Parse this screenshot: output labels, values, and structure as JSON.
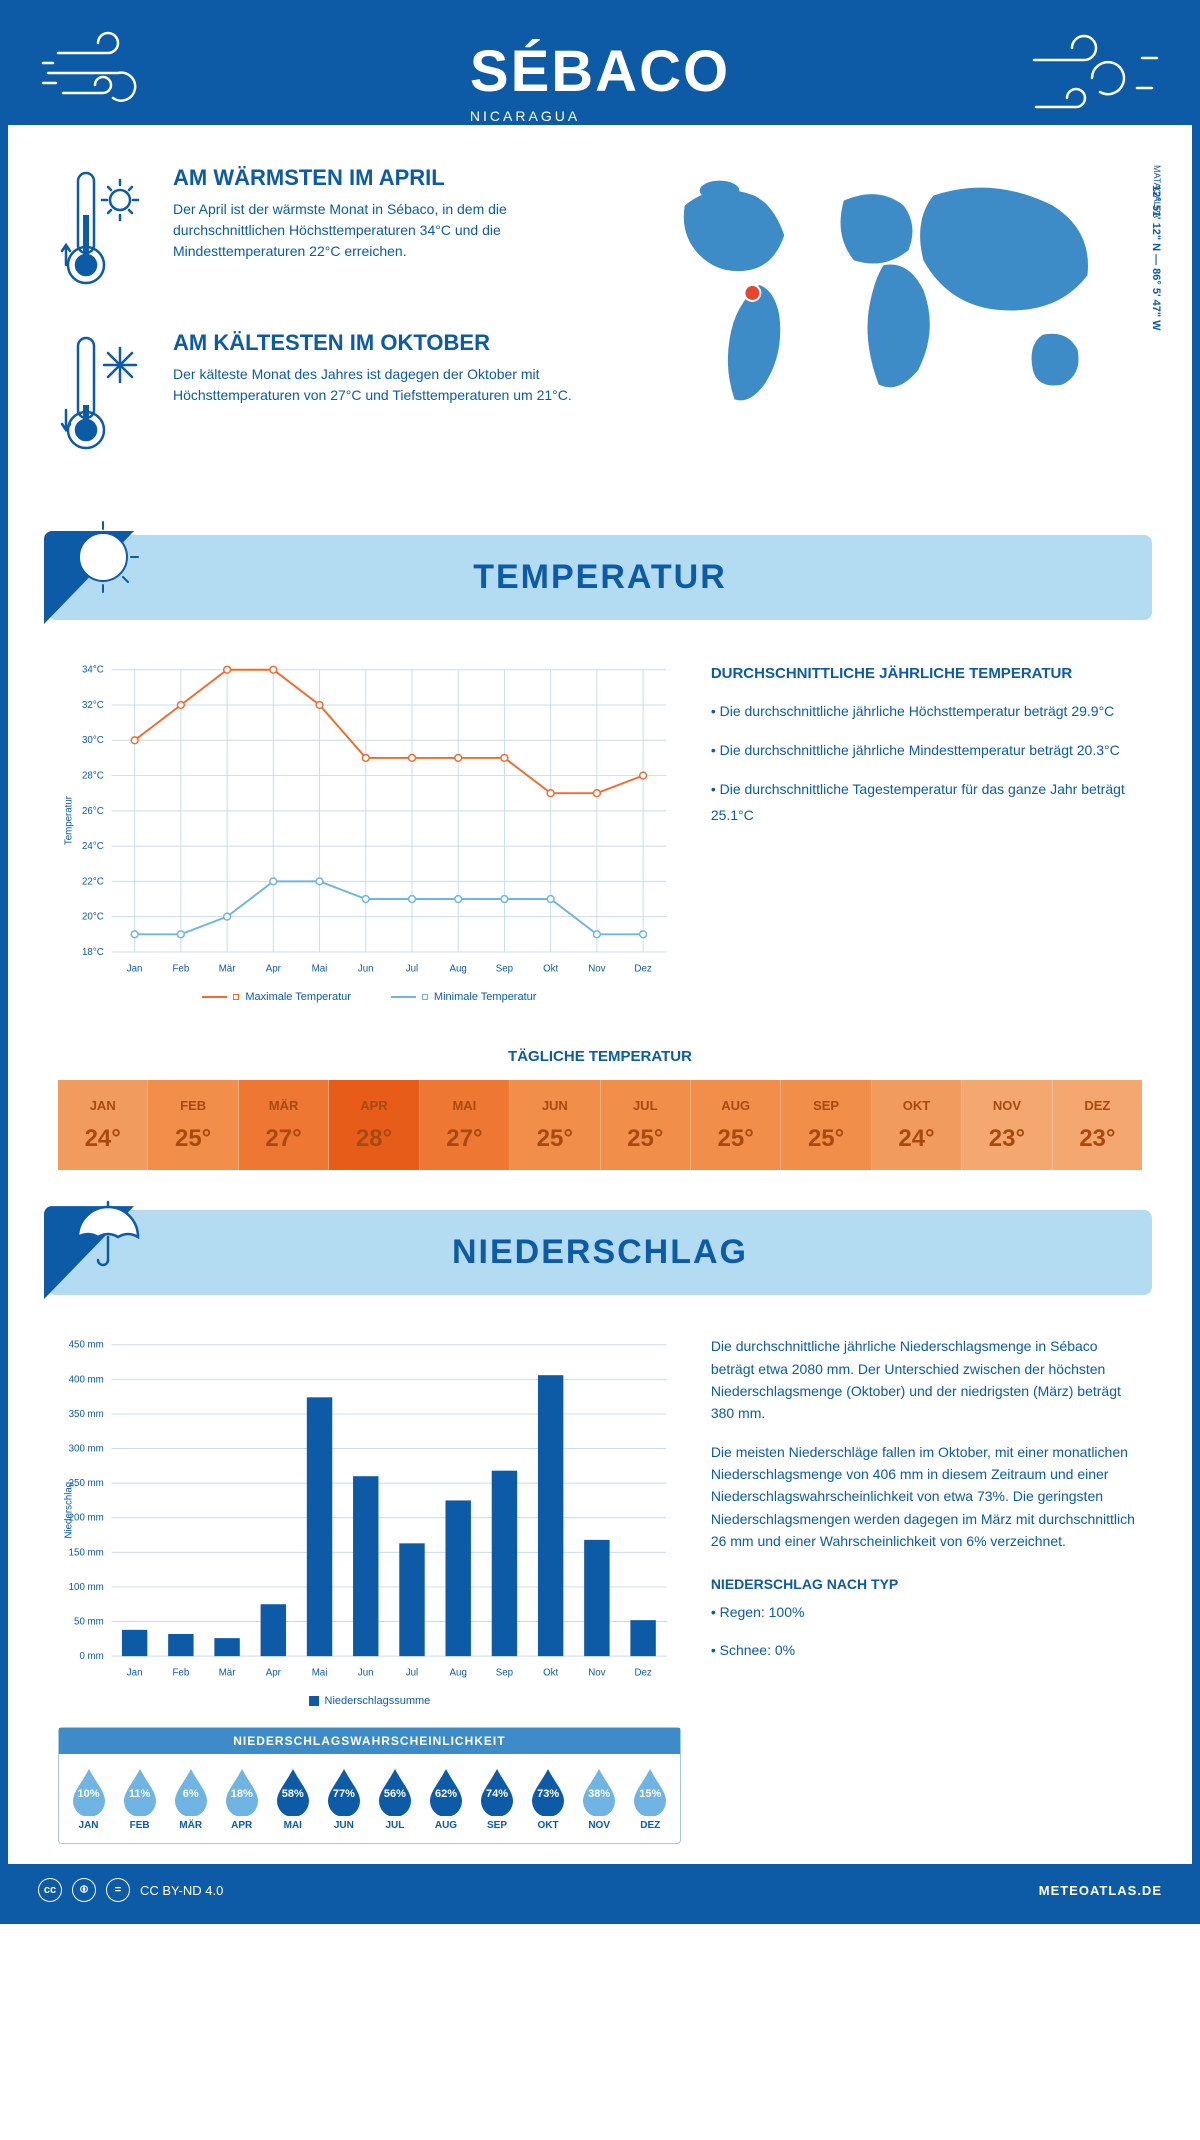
{
  "header": {
    "city": "SÉBACO",
    "country": "NICARAGUA"
  },
  "colors": {
    "brand": "#0d5aa7",
    "brand_light": "#3e8cc7",
    "banner_bg": "#b3dcf2",
    "max_line": "#ef6c2f",
    "min_line": "#6fb4e3",
    "grid": "#c9dcea",
    "axis_text": "#0d5aa7"
  },
  "facts": {
    "warm": {
      "title": "AM WÄRMSTEN IM APRIL",
      "text": "Der April ist der wärmste Monat in Sébaco, in dem die durchschnittlichen Höchsttemperaturen 34°C und die Mindesttemperaturen 22°C erreichen."
    },
    "cold": {
      "title": "AM KÄLTESTEN IM OKTOBER",
      "text": "Der kälteste Monat des Jahres ist dagegen der Oktober mit Höchsttemperaturen von 27°C und Tiefsttemperaturen um 21°C."
    }
  },
  "location": {
    "region": "MATAGALPA",
    "coords": "12° 51' 12\" N — 86° 5' 47\" W"
  },
  "months": [
    "Jan",
    "Feb",
    "Mär",
    "Apr",
    "Mai",
    "Jun",
    "Jul",
    "Aug",
    "Sep",
    "Okt",
    "Nov",
    "Dez"
  ],
  "months_upper": [
    "JAN",
    "FEB",
    "MÄR",
    "APR",
    "MAI",
    "JUN",
    "JUL",
    "AUG",
    "SEP",
    "OKT",
    "NOV",
    "DEZ"
  ],
  "temperature": {
    "banner": "TEMPERATUR",
    "ylabel": "Temperatur",
    "ylim": [
      18,
      34
    ],
    "ytick_step": 2,
    "max_series": [
      30,
      32,
      34,
      34,
      32,
      29,
      29,
      29,
      29,
      27,
      27,
      28
    ],
    "min_series": [
      19,
      19,
      20,
      22,
      22,
      21,
      21,
      21,
      21,
      21,
      19,
      19
    ],
    "legend_max": "Maximale Temperatur",
    "legend_min": "Minimale Temperatur",
    "info_title": "DURCHSCHNITTLICHE JÄHRLICHE TEMPERATUR",
    "bullets": [
      "• Die durchschnittliche jährliche Höchsttemperatur beträgt 29.9°C",
      "• Die durchschnittliche jährliche Mindesttemperatur beträgt 20.3°C",
      "• Die durchschnittliche Tagestemperatur für das ganze Jahr beträgt 25.1°C"
    ],
    "daily_title": "TÄGLICHE TEMPERATUR",
    "daily_values": [
      "24°",
      "25°",
      "27°",
      "28°",
      "27°",
      "25°",
      "25°",
      "25°",
      "25°",
      "24°",
      "23°",
      "23°"
    ],
    "daily_colors": [
      "#f29b5f",
      "#f18e4a",
      "#ee7733",
      "#e85c1a",
      "#ee7733",
      "#f18e4a",
      "#f18e4a",
      "#f18e4a",
      "#f18e4a",
      "#f29b5f",
      "#f4a86f",
      "#f4a86f"
    ],
    "daily_text": "#a84a10"
  },
  "precip": {
    "banner": "NIEDERSCHLAG",
    "ylabel": "Niederschlag",
    "ylim": [
      0,
      450
    ],
    "ytick_step": 50,
    "values": [
      38,
      32,
      26,
      75,
      374,
      260,
      163,
      225,
      268,
      406,
      168,
      52
    ],
    "bar_color": "#0d5aa7",
    "legend": "Niederschlagssumme",
    "para1": "Die durchschnittliche jährliche Niederschlagsmenge in Sébaco beträgt etwa 2080 mm. Der Unterschied zwischen der höchsten Niederschlagsmenge (Oktober) und der niedrigsten (März) beträgt 380 mm.",
    "para2": "Die meisten Niederschläge fallen im Oktober, mit einer monatlichen Niederschlagsmenge von 406 mm in diesem Zeitraum und einer Niederschlagswahrscheinlichkeit von etwa 73%. Die geringsten Niederschlagsmengen werden dagegen im März mit durchschnittlich 26 mm und einer Wahrscheinlichkeit von 6% verzeichnet.",
    "type_title": "NIEDERSCHLAG NACH TYP",
    "type_lines": [
      "• Regen: 100%",
      "• Schnee: 0%"
    ],
    "prob_title": "NIEDERSCHLAGSWAHRSCHEINLICHKEIT",
    "prob_values": [
      "10%",
      "11%",
      "6%",
      "18%",
      "58%",
      "77%",
      "56%",
      "62%",
      "74%",
      "73%",
      "38%",
      "15%"
    ],
    "prob_nums": [
      10,
      11,
      6,
      18,
      58,
      77,
      56,
      62,
      74,
      73,
      38,
      15
    ],
    "drop_light": "#6fb4e3",
    "drop_dark": "#0d5aa7"
  },
  "footer": {
    "license": "CC BY-ND 4.0",
    "site": "METEOATLAS.DE"
  }
}
